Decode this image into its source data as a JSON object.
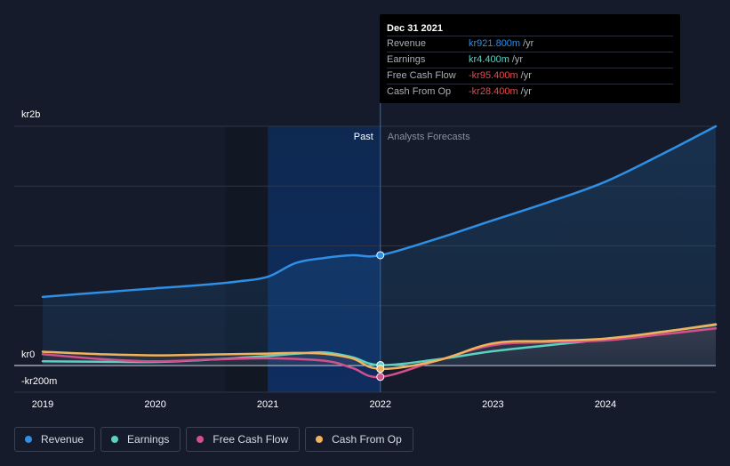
{
  "chart_data": {
    "type": "area",
    "y_axis_labels": [
      "kr2b",
      "kr0",
      "-kr200m"
    ],
    "x_tick_labels": [
      "2019",
      "2020",
      "2021",
      "2022",
      "2023",
      "2024"
    ],
    "ylim": [
      -200,
      2000
    ],
    "y_gridlines": [
      2000,
      1500,
      1000,
      500,
      0
    ],
    "region_labels": {
      "past": "Past",
      "forecast": "Analysts Forecasts"
    },
    "divider_x": 2022.0,
    "highlight_band": [
      2021.0,
      2022.0
    ],
    "series": [
      {
        "name": "Revenue",
        "color": "#2f8fe5",
        "fill": true,
        "points": [
          [
            2019.0,
            573
          ],
          [
            2019.5,
            610
          ],
          [
            2020.0,
            645
          ],
          [
            2020.5,
            680
          ],
          [
            2020.75,
            705
          ],
          [
            2021.0,
            742
          ],
          [
            2021.25,
            857
          ],
          [
            2021.5,
            899
          ],
          [
            2021.75,
            922
          ],
          [
            2022.0,
            922
          ],
          [
            2022.5,
            1059
          ],
          [
            2023.0,
            1214
          ],
          [
            2023.5,
            1367
          ],
          [
            2024.0,
            1537
          ],
          [
            2024.5,
            1766
          ],
          [
            2024.98,
            2000
          ]
        ]
      },
      {
        "name": "Earnings",
        "color": "#59d2c2",
        "fill": false,
        "points": [
          [
            2019.0,
            35
          ],
          [
            2019.5,
            32
          ],
          [
            2020.0,
            30
          ],
          [
            2020.5,
            50
          ],
          [
            2021.0,
            80
          ],
          [
            2021.25,
            98
          ],
          [
            2021.5,
            110
          ],
          [
            2021.75,
            70
          ],
          [
            2022.0,
            4
          ],
          [
            2022.5,
            50
          ],
          [
            2023.0,
            120
          ],
          [
            2023.5,
            170
          ],
          [
            2024.0,
            220
          ],
          [
            2024.5,
            280
          ],
          [
            2024.98,
            340
          ]
        ]
      },
      {
        "name": "Free Cash Flow",
        "color": "#d4508b",
        "fill": false,
        "points": [
          [
            2019.0,
            95
          ],
          [
            2019.5,
            55
          ],
          [
            2020.0,
            35
          ],
          [
            2020.5,
            50
          ],
          [
            2021.0,
            60
          ],
          [
            2021.5,
            40
          ],
          [
            2021.75,
            -20
          ],
          [
            2022.0,
            -95
          ],
          [
            2022.5,
            40
          ],
          [
            2023.0,
            170
          ],
          [
            2023.5,
            195
          ],
          [
            2024.0,
            210
          ],
          [
            2024.5,
            260
          ],
          [
            2024.98,
            310
          ]
        ]
      },
      {
        "name": "Cash From Op",
        "color": "#f0b25a",
        "fill": false,
        "points": [
          [
            2019.0,
            115
          ],
          [
            2019.5,
            95
          ],
          [
            2020.0,
            85
          ],
          [
            2020.5,
            92
          ],
          [
            2021.0,
            100
          ],
          [
            2021.25,
            105
          ],
          [
            2021.5,
            98
          ],
          [
            2021.75,
            60
          ],
          [
            2022.0,
            -28
          ],
          [
            2022.5,
            40
          ],
          [
            2023.0,
            185
          ],
          [
            2023.5,
            205
          ],
          [
            2024.0,
            225
          ],
          [
            2024.5,
            280
          ],
          [
            2024.98,
            345
          ]
        ]
      }
    ],
    "markers": [
      {
        "series": "Revenue",
        "x": 2022.0,
        "y": 922
      },
      {
        "series": "Earnings",
        "x": 2022.0,
        "y": 4
      },
      {
        "series": "Free Cash Flow",
        "x": 2022.0,
        "y": -95
      },
      {
        "series": "Cash From Op",
        "x": 2022.0,
        "y": -28
      }
    ]
  },
  "tooltip": {
    "date": "Dec 31 2021",
    "rows": [
      {
        "label": "Revenue",
        "value": "kr921.800m",
        "unit": "/yr",
        "color": "#2f8fe5"
      },
      {
        "label": "Earnings",
        "value": "kr4.400m",
        "unit": "/yr",
        "color": "#59d2c2"
      },
      {
        "label": "Free Cash Flow",
        "value": "-kr95.400m",
        "unit": "/yr",
        "color": "#e5484d"
      },
      {
        "label": "Cash From Op",
        "value": "-kr28.400m",
        "unit": "/yr",
        "color": "#e5484d"
      }
    ]
  },
  "legend": [
    {
      "label": "Revenue",
      "color": "#2f8fe5"
    },
    {
      "label": "Earnings",
      "color": "#59d2c2"
    },
    {
      "label": "Free Cash Flow",
      "color": "#d4508b"
    },
    {
      "label": "Cash From Op",
      "color": "#f0b25a"
    }
  ]
}
